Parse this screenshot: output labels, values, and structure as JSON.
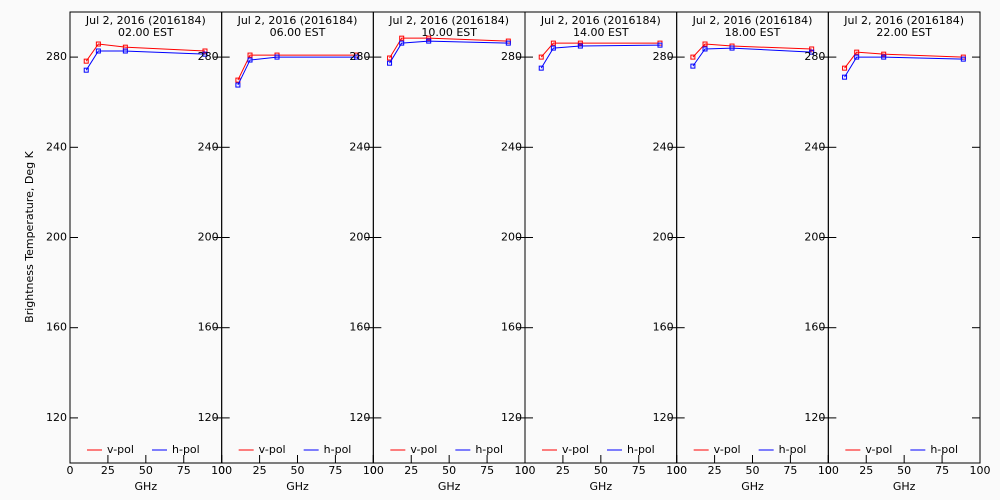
{
  "ylabel": "Brightness Temperature, Deg K",
  "chart_data": [
    {
      "type": "line",
      "title": "Jul  2, 2016 (2016184)",
      "subtitle": "02.00 EST",
      "xlabel": "GHz",
      "x": [
        10.7,
        18.7,
        36.5,
        89
      ],
      "xlim": [
        0,
        100
      ],
      "xticks": [
        0,
        25,
        50,
        75,
        100
      ],
      "ylim": [
        100,
        300
      ],
      "yticks": [
        120,
        160,
        200,
        240,
        280
      ],
      "legend": "lower left",
      "series": [
        {
          "name": "v-pol",
          "color": "#ff0000",
          "values": [
            278.2,
            285.8,
            284.4,
            282.7
          ]
        },
        {
          "name": "h-pol",
          "color": "#0000ff",
          "values": [
            274.2,
            282.7,
            282.7,
            281.3
          ]
        }
      ]
    },
    {
      "type": "line",
      "title": "Jul  2, 2016 (2016184)",
      "subtitle": "06.00 EST",
      "xlabel": "GHz",
      "x": [
        10.7,
        18.7,
        36.5,
        89
      ],
      "xlim": [
        0,
        100
      ],
      "xticks": [
        0,
        25,
        50,
        75,
        100
      ],
      "ylim": [
        100,
        300
      ],
      "yticks": [
        120,
        160,
        200,
        240,
        280
      ],
      "legend": "lower left",
      "series": [
        {
          "name": "v-pol",
          "color": "#ff0000",
          "values": [
            269.8,
            280.9,
            280.9,
            280.9
          ]
        },
        {
          "name": "h-pol",
          "color": "#0000ff",
          "values": [
            267.6,
            278.7,
            280,
            280
          ]
        }
      ]
    },
    {
      "type": "line",
      "title": "Jul  2, 2016 (2016184)",
      "subtitle": "10.00 EST",
      "xlabel": "GHz",
      "x": [
        10.7,
        18.7,
        36.5,
        89
      ],
      "xlim": [
        0,
        100
      ],
      "xticks": [
        0,
        25,
        50,
        75,
        100
      ],
      "ylim": [
        100,
        300
      ],
      "yticks": [
        120,
        160,
        200,
        240,
        280
      ],
      "legend": "lower left",
      "series": [
        {
          "name": "v-pol",
          "color": "#ff0000",
          "values": [
            279.6,
            288.4,
            288.4,
            287.1
          ]
        },
        {
          "name": "h-pol",
          "color": "#0000ff",
          "values": [
            277.3,
            286.2,
            287.1,
            286.2
          ]
        }
      ]
    },
    {
      "type": "line",
      "title": "Jul  2, 2016 (2016184)",
      "subtitle": "14.00 EST",
      "xlabel": "GHz",
      "x": [
        10.7,
        18.7,
        36.5,
        89
      ],
      "xlim": [
        0,
        100
      ],
      "xticks": [
        0,
        25,
        50,
        75,
        100
      ],
      "ylim": [
        100,
        300
      ],
      "yticks": [
        120,
        160,
        200,
        240,
        280
      ],
      "legend": "lower left",
      "series": [
        {
          "name": "v-pol",
          "color": "#ff0000",
          "values": [
            280,
            286.2,
            286.2,
            286.2
          ]
        },
        {
          "name": "h-pol",
          "color": "#0000ff",
          "values": [
            275.1,
            284,
            284.9,
            285.3
          ]
        }
      ]
    },
    {
      "type": "line",
      "title": "Jul  2, 2016 (2016184)",
      "subtitle": "18.00 EST",
      "xlabel": "GHz",
      "x": [
        10.7,
        18.7,
        36.5,
        89
      ],
      "xlim": [
        0,
        100
      ],
      "xticks": [
        0,
        25,
        50,
        75,
        100
      ],
      "ylim": [
        100,
        300
      ],
      "yticks": [
        120,
        160,
        200,
        240,
        280
      ],
      "legend": "lower left",
      "series": [
        {
          "name": "v-pol",
          "color": "#ff0000",
          "values": [
            280,
            285.8,
            284.9,
            283.6
          ]
        },
        {
          "name": "h-pol",
          "color": "#0000ff",
          "values": [
            276,
            283.6,
            284,
            282.2
          ]
        }
      ]
    },
    {
      "type": "line",
      "title": "Jul  2, 2016 (2016184)",
      "subtitle": "22.00 EST",
      "xlabel": "GHz",
      "x": [
        10.7,
        18.7,
        36.5,
        89
      ],
      "xlim": [
        0,
        100
      ],
      "xticks": [
        0,
        25,
        50,
        75,
        100
      ],
      "ylim": [
        100,
        300
      ],
      "yticks": [
        120,
        160,
        200,
        240,
        280
      ],
      "legend": "lower left",
      "series": [
        {
          "name": "v-pol",
          "color": "#ff0000",
          "values": [
            275.1,
            282.2,
            281.3,
            280
          ]
        },
        {
          "name": "h-pol",
          "color": "#0000ff",
          "values": [
            271.1,
            280,
            280,
            279.1
          ]
        }
      ]
    }
  ]
}
